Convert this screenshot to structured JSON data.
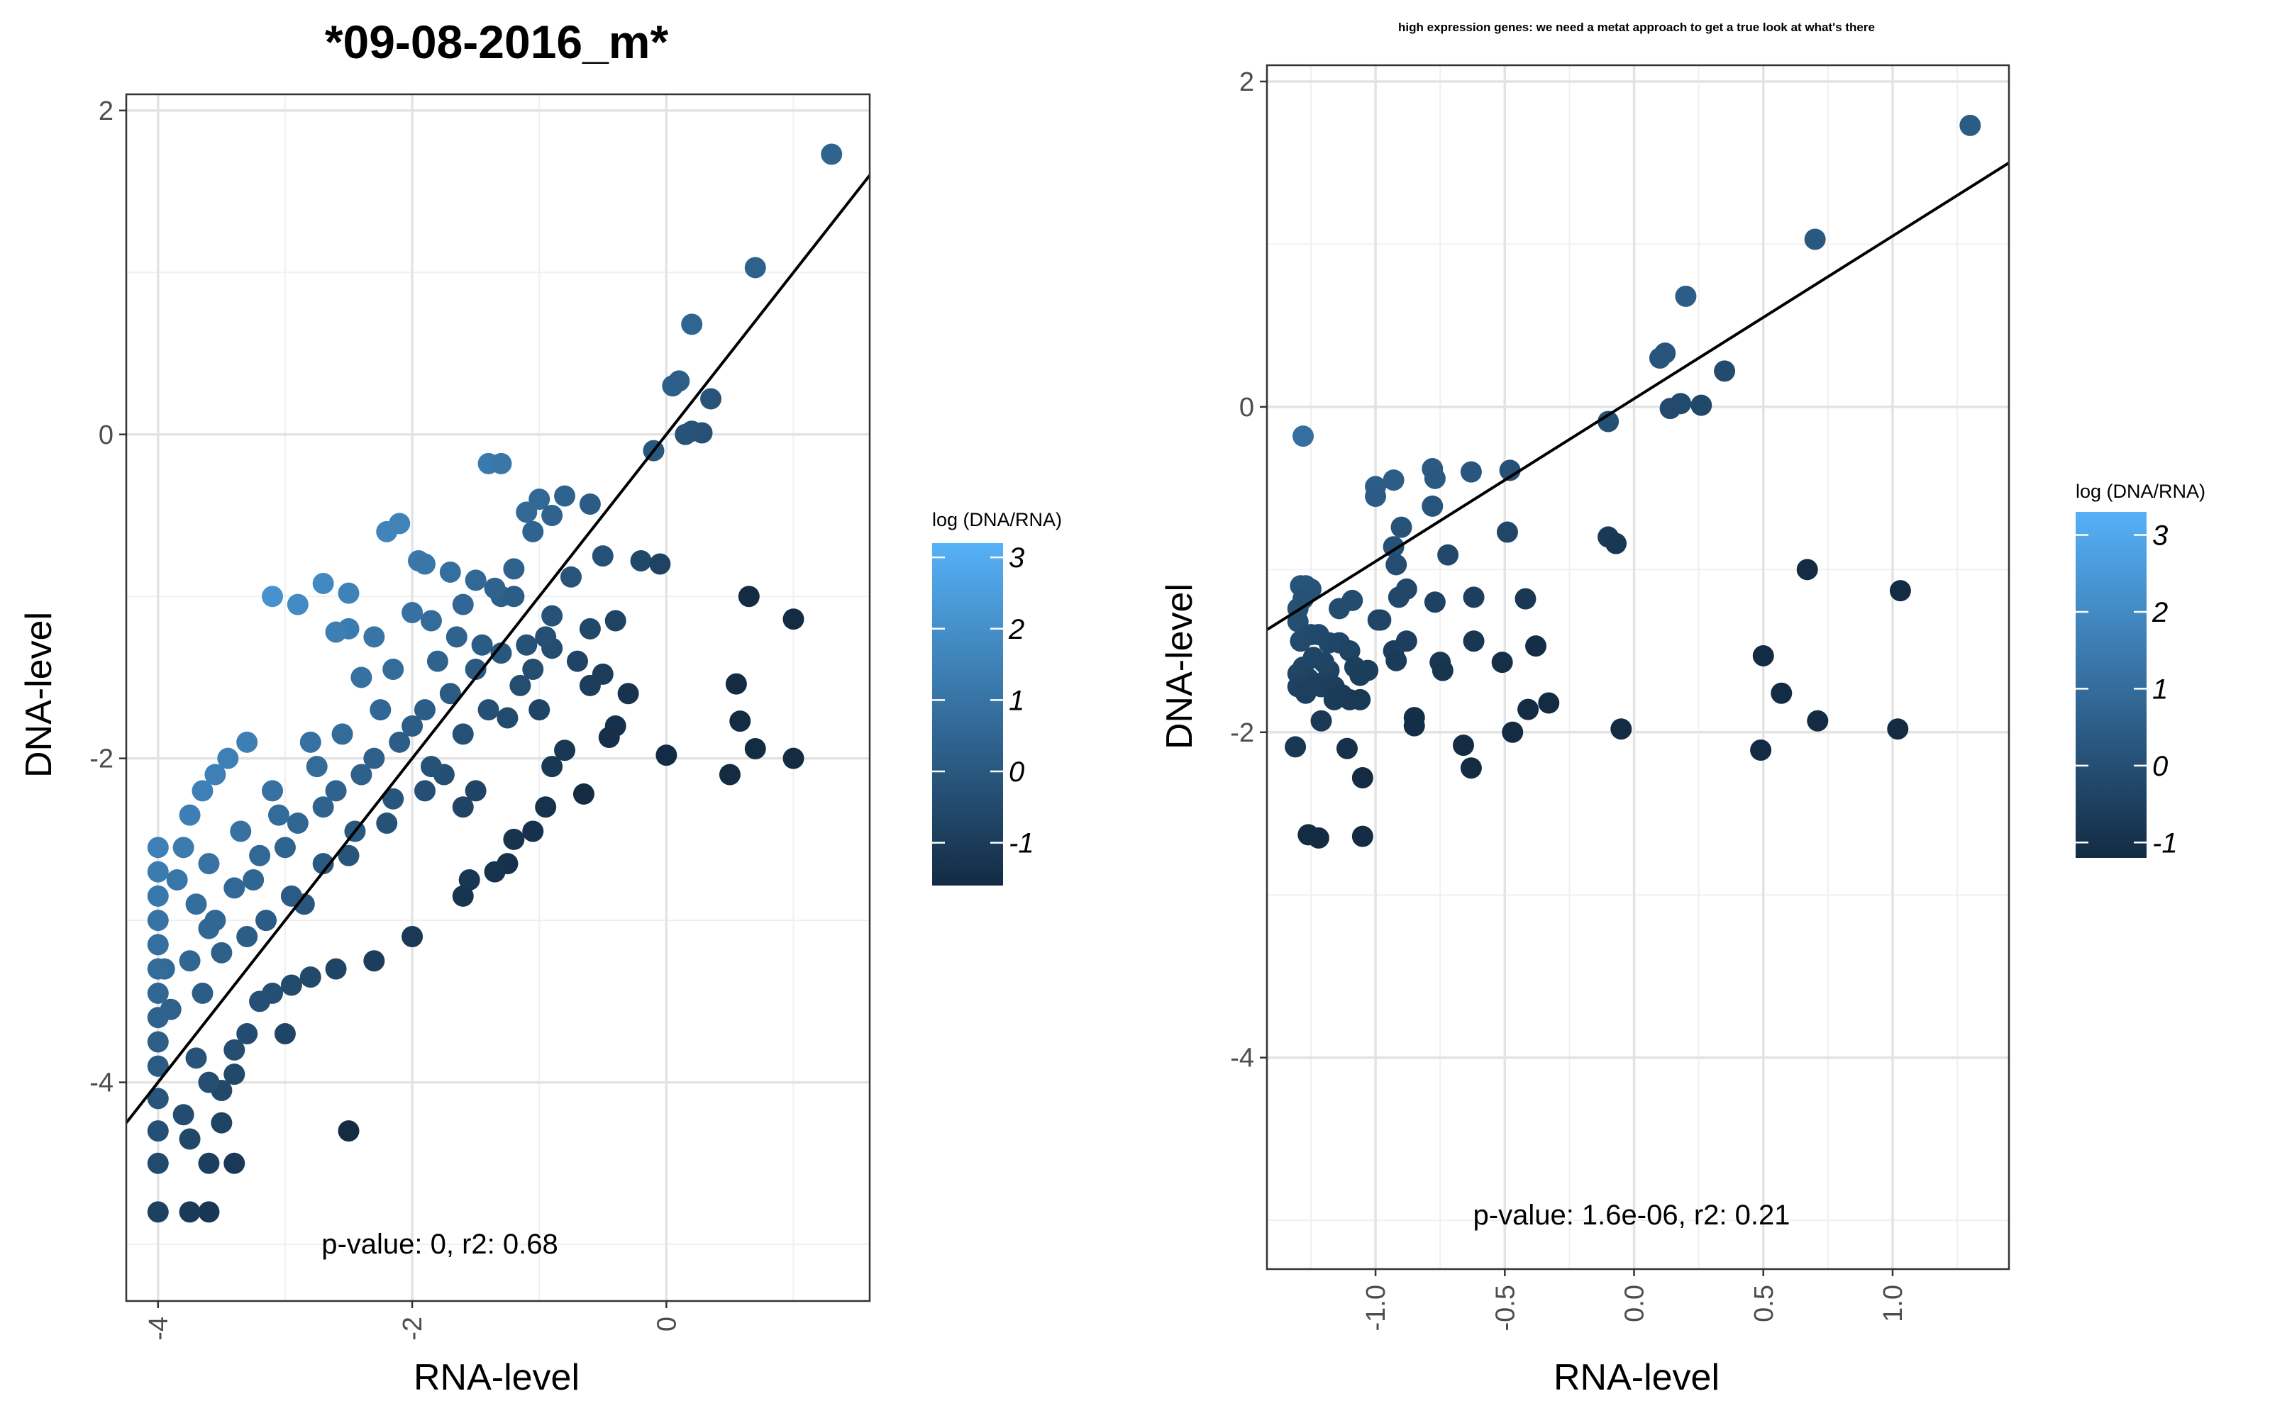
{
  "chart_data": [
    {
      "type": "scatter",
      "title": "*09-08-2016_m*",
      "xlabel": "RNA-level",
      "ylabel": "DNA-level",
      "xlim": [
        -4.25,
        1.6
      ],
      "ylim": [
        -5.35,
        2.1
      ],
      "x_ticks": [
        -4,
        -2,
        0
      ],
      "x_tick_labels": [
        "-4",
        "-2",
        "0"
      ],
      "y_ticks": [
        -4,
        -2,
        0,
        2
      ],
      "y_tick_labels": [
        "-4",
        "-2",
        "0",
        "2"
      ],
      "grid": true,
      "annotation": "p-value: 0, r2: 0.68",
      "legend": {
        "title": "log (DNA/RNA)",
        "type": "colorbar",
        "range": [
          -1.6,
          3.2
        ],
        "ticks": [
          3,
          2,
          1,
          0,
          -1
        ],
        "tick_labels": [
          "3",
          "2",
          "1",
          "0",
          "-1"
        ],
        "colors": [
          "#132B43",
          "#56B1F7"
        ],
        "placement": "right"
      },
      "regression_line": {
        "slope": 1.0,
        "intercept": 0.0
      },
      "points": [
        [
          1.3,
          1.73
        ],
        [
          0.7,
          1.03
        ],
        [
          0.2,
          0.68
        ],
        [
          0.05,
          0.3
        ],
        [
          0.1,
          0.33
        ],
        [
          0.35,
          0.22
        ],
        [
          0.2,
          0.02
        ],
        [
          0.28,
          0.01
        ],
        [
          0.15,
          0.0
        ],
        [
          -0.1,
          -0.1
        ],
        [
          -1.4,
          -0.18
        ],
        [
          -1.3,
          -0.18
        ],
        [
          -2.1,
          -0.55
        ],
        [
          -1.0,
          -0.4
        ],
        [
          -0.8,
          -0.38
        ],
        [
          -0.6,
          -0.43
        ],
        [
          -1.1,
          -0.48
        ],
        [
          -0.9,
          -0.5
        ],
        [
          -1.05,
          -0.6
        ],
        [
          -0.2,
          -0.78
        ],
        [
          -0.05,
          -0.8
        ],
        [
          -0.5,
          -0.75
        ],
        [
          -1.95,
          -0.78
        ],
        [
          -1.9,
          -0.8
        ],
        [
          -1.2,
          -0.83
        ],
        [
          -0.75,
          -0.88
        ],
        [
          -1.3,
          -1.0
        ],
        [
          -0.9,
          -1.12
        ],
        [
          -0.6,
          -1.2
        ],
        [
          -0.4,
          -1.15
        ],
        [
          -0.7,
          -1.4
        ],
        [
          -0.5,
          -1.48
        ],
        [
          -0.6,
          -1.55
        ],
        [
          -0.3,
          -1.6
        ],
        [
          -0.9,
          -1.32
        ],
        [
          -1.1,
          -1.3
        ],
        [
          -2.5,
          -1.2
        ],
        [
          -2.6,
          -1.22
        ],
        [
          -2.3,
          -1.25
        ],
        [
          -2.0,
          -1.1
        ],
        [
          -1.6,
          -1.05
        ],
        [
          -1.35,
          -0.95
        ],
        [
          -1.5,
          -0.9
        ],
        [
          -1.7,
          -0.85
        ],
        [
          0.65,
          -1.0
        ],
        [
          1.0,
          -1.14
        ],
        [
          0.55,
          -1.54
        ],
        [
          0.58,
          -1.77
        ],
        [
          0.7,
          -1.94
        ],
        [
          1.0,
          -2.0
        ],
        [
          0.5,
          -2.1
        ],
        [
          0.0,
          -1.98
        ],
        [
          -0.4,
          -1.8
        ],
        [
          -0.45,
          -1.87
        ],
        [
          -0.8,
          -1.95
        ],
        [
          -0.9,
          -2.05
        ],
        [
          -0.65,
          -2.22
        ],
        [
          -0.95,
          -2.3
        ],
        [
          -1.05,
          -2.45
        ],
        [
          -1.2,
          -2.5
        ],
        [
          -1.6,
          -2.3
        ],
        [
          -1.5,
          -2.2
        ],
        [
          -1.75,
          -2.1
        ],
        [
          -1.25,
          -2.65
        ],
        [
          -1.35,
          -2.7
        ],
        [
          -1.55,
          -2.75
        ],
        [
          -1.6,
          -2.85
        ],
        [
          -2.0,
          -3.1
        ],
        [
          -2.6,
          -3.3
        ],
        [
          -2.3,
          -3.25
        ],
        [
          -2.8,
          -3.35
        ],
        [
          -2.95,
          -3.4
        ],
        [
          -3.1,
          -3.45
        ],
        [
          -3.0,
          -3.7
        ],
        [
          -3.2,
          -3.5
        ],
        [
          -3.3,
          -3.7
        ],
        [
          -3.4,
          -3.8
        ],
        [
          -3.4,
          -3.95
        ],
        [
          -3.5,
          -4.05
        ],
        [
          -3.7,
          -3.85
        ],
        [
          -3.6,
          -4.0
        ],
        [
          -3.5,
          -4.25
        ],
        [
          -3.6,
          -4.5
        ],
        [
          -3.4,
          -4.5
        ],
        [
          -3.6,
          -4.8
        ],
        [
          -3.75,
          -4.8
        ],
        [
          -2.5,
          -4.3
        ],
        [
          -4.0,
          -4.1
        ],
        [
          -4.0,
          -4.3
        ],
        [
          -4.0,
          -4.8
        ],
        [
          -3.8,
          -4.2
        ],
        [
          -3.75,
          -4.35
        ],
        [
          -3.9,
          -3.55
        ],
        [
          -3.95,
          -3.3
        ],
        [
          -2.2,
          -0.6
        ],
        [
          -2.7,
          -0.92
        ],
        [
          -2.5,
          -0.98
        ],
        [
          -3.1,
          -1.0
        ],
        [
          -2.9,
          -1.05
        ],
        [
          -1.85,
          -1.15
        ],
        [
          -1.45,
          -1.3
        ],
        [
          -2.15,
          -1.45
        ],
        [
          -2.4,
          -1.5
        ],
        [
          -3.3,
          -1.9
        ],
        [
          -3.45,
          -2.0
        ],
        [
          -3.55,
          -2.1
        ],
        [
          -3.65,
          -2.2
        ],
        [
          -3.75,
          -2.35
        ],
        [
          -3.8,
          -2.55
        ],
        [
          -3.85,
          -2.75
        ],
        [
          -3.7,
          -2.9
        ],
        [
          -3.6,
          -3.05
        ],
        [
          -3.5,
          -3.2
        ],
        [
          -3.3,
          -3.1
        ],
        [
          -2.85,
          -2.9
        ],
        [
          -2.5,
          -2.6
        ],
        [
          -2.2,
          -2.4
        ],
        [
          -1.9,
          -2.2
        ],
        [
          -2.0,
          -1.8
        ],
        [
          -2.3,
          -2.0
        ],
        [
          -2.6,
          -2.2
        ],
        [
          -2.9,
          -2.4
        ],
        [
          -3.2,
          -2.6
        ],
        [
          -3.4,
          -2.8
        ],
        [
          -3.55,
          -3.0
        ],
        [
          -1.7,
          -1.6
        ],
        [
          -1.9,
          -1.7
        ],
        [
          -2.1,
          -1.9
        ],
        [
          -2.4,
          -2.1
        ],
        [
          -2.7,
          -2.3
        ],
        [
          -3.0,
          -2.55
        ],
        [
          -3.25,
          -2.75
        ],
        [
          -1.5,
          -1.45
        ],
        [
          -1.3,
          -1.35
        ],
        [
          -1.15,
          -1.55
        ],
        [
          -1.0,
          -1.7
        ],
        [
          -2.8,
          -1.9
        ],
        [
          -3.1,
          -2.2
        ],
        [
          -3.35,
          -2.45
        ],
        [
          -3.6,
          -2.65
        ],
        [
          -3.75,
          -3.25
        ],
        [
          -3.65,
          -3.45
        ],
        [
          -1.65,
          -1.25
        ],
        [
          -1.8,
          -1.4
        ],
        [
          -2.25,
          -1.7
        ],
        [
          -2.55,
          -1.85
        ],
        [
          -2.75,
          -2.05
        ],
        [
          -3.05,
          -2.35
        ],
        [
          -1.4,
          -1.7
        ],
        [
          -1.6,
          -1.85
        ],
        [
          -1.85,
          -2.05
        ],
        [
          -2.15,
          -2.25
        ],
        [
          -2.45,
          -2.45
        ],
        [
          -2.7,
          -2.65
        ],
        [
          -2.95,
          -2.85
        ],
        [
          -3.15,
          -3.0
        ],
        [
          -4.0,
          -2.55
        ],
        [
          -4.0,
          -2.7
        ],
        [
          -4.0,
          -2.85
        ],
        [
          -4.0,
          -3.0
        ],
        [
          -4.0,
          -3.15
        ],
        [
          -4.0,
          -3.3
        ],
        [
          -4.0,
          -3.45
        ],
        [
          -4.0,
          -3.6
        ],
        [
          -4.0,
          -3.75
        ],
        [
          -4.0,
          -3.9
        ],
        [
          -4.0,
          -4.5
        ],
        [
          -1.2,
          -1.0
        ],
        [
          -0.95,
          -1.25
        ],
        [
          -1.05,
          -1.45
        ],
        [
          -1.25,
          -1.75
        ]
      ]
    },
    {
      "type": "scatter",
      "title": "high expression genes: we need a metat approach to get a true look at what's there",
      "xlabel": "RNA-level",
      "ylabel": "DNA-level",
      "xlim": [
        -1.42,
        1.45
      ],
      "ylim": [
        -5.3,
        2.1
      ],
      "x_ticks": [
        -1.0,
        -0.5,
        0.0,
        0.5,
        1.0
      ],
      "x_tick_labels": [
        "-1.0",
        "-0.5",
        "0.0",
        "0.5",
        "1.0"
      ],
      "y_ticks": [
        -4,
        -2,
        0,
        2
      ],
      "y_tick_labels": [
        "-4",
        "-2",
        "0",
        "2"
      ],
      "grid": true,
      "annotation": "p-value: 1.6e-06, r2: 0.21",
      "legend": {
        "title": "log (DNA/RNA)",
        "type": "colorbar",
        "range": [
          -1.2,
          3.3
        ],
        "ticks": [
          3,
          2,
          1,
          0,
          -1
        ],
        "tick_labels": [
          "3",
          "2",
          "1",
          "0",
          "-1"
        ],
        "colors": [
          "#132B43",
          "#56B1F7"
        ],
        "placement": "right"
      },
      "regression_line": {
        "slope": 1.0,
        "intercept": 0.05
      },
      "points": [
        [
          1.3,
          1.73
        ],
        [
          0.7,
          1.03
        ],
        [
          0.2,
          0.68
        ],
        [
          0.1,
          0.3
        ],
        [
          0.12,
          0.33
        ],
        [
          0.35,
          0.22
        ],
        [
          0.18,
          0.02
        ],
        [
          0.26,
          0.01
        ],
        [
          0.14,
          -0.01
        ],
        [
          -0.1,
          -0.09
        ],
        [
          -1.28,
          -0.18
        ],
        [
          -1.0,
          -0.49
        ],
        [
          -1.0,
          -0.55
        ],
        [
          -0.93,
          -0.45
        ],
        [
          -0.78,
          -0.38
        ],
        [
          -0.77,
          -0.44
        ],
        [
          -0.63,
          -0.4
        ],
        [
          -0.48,
          -0.39
        ],
        [
          -0.78,
          -0.61
        ],
        [
          -0.9,
          -0.74
        ],
        [
          -0.93,
          -0.86
        ],
        [
          -0.92,
          -0.97
        ],
        [
          -0.72,
          -0.91
        ],
        [
          -0.49,
          -0.77
        ],
        [
          -0.1,
          -0.8
        ],
        [
          -0.07,
          -0.84
        ],
        [
          -0.98,
          -1.31
        ],
        [
          -0.99,
          -1.31
        ],
        [
          -1.09,
          -1.19
        ],
        [
          -1.14,
          -1.24
        ],
        [
          -0.91,
          -1.17
        ],
        [
          -0.88,
          -1.12
        ],
        [
          -0.77,
          -1.2
        ],
        [
          -0.62,
          -1.17
        ],
        [
          -0.42,
          -1.18
        ],
        [
          -1.29,
          -1.1
        ],
        [
          -1.27,
          -1.1
        ],
        [
          -1.25,
          -1.12
        ],
        [
          -1.28,
          -1.18
        ],
        [
          -1.3,
          -1.24
        ],
        [
          -1.3,
          -1.32
        ],
        [
          -1.29,
          -1.44
        ],
        [
          -1.25,
          -1.4
        ],
        [
          -1.22,
          -1.4
        ],
        [
          -1.18,
          -1.45
        ],
        [
          -1.14,
          -1.45
        ],
        [
          -1.1,
          -1.5
        ],
        [
          -1.08,
          -1.6
        ],
        [
          -1.06,
          -1.65
        ],
        [
          -1.03,
          -1.62
        ],
        [
          -1.28,
          -1.6
        ],
        [
          -1.3,
          -1.64
        ],
        [
          -1.26,
          -1.67
        ],
        [
          -1.23,
          -1.7
        ],
        [
          -1.21,
          -1.72
        ],
        [
          -1.18,
          -1.62
        ],
        [
          -1.16,
          -1.72
        ],
        [
          -1.13,
          -1.77
        ],
        [
          -1.1,
          -1.8
        ],
        [
          -1.06,
          -1.8
        ],
        [
          -1.24,
          -1.54
        ],
        [
          -1.2,
          -1.57
        ],
        [
          -1.3,
          -1.72
        ],
        [
          -1.27,
          -1.76
        ],
        [
          -0.93,
          -1.5
        ],
        [
          -0.88,
          -1.44
        ],
        [
          -0.92,
          -1.56
        ],
        [
          -0.75,
          -1.57
        ],
        [
          -0.74,
          -1.62
        ],
        [
          -0.62,
          -1.44
        ],
        [
          -0.51,
          -1.57
        ],
        [
          -0.38,
          -1.47
        ],
        [
          -0.33,
          -1.82
        ],
        [
          -0.41,
          -1.86
        ],
        [
          -0.47,
          -2.0
        ],
        [
          -0.85,
          -1.91
        ],
        [
          -0.85,
          -1.96
        ],
        [
          -0.66,
          -2.08
        ],
        [
          -0.63,
          -2.22
        ],
        [
          -1.11,
          -2.1
        ],
        [
          -1.05,
          -2.28
        ],
        [
          -1.21,
          -1.93
        ],
        [
          -1.16,
          -1.8
        ],
        [
          -1.31,
          -2.09
        ],
        [
          -1.26,
          -2.63
        ],
        [
          -1.22,
          -2.65
        ],
        [
          -1.05,
          -2.64
        ],
        [
          0.67,
          -1.0
        ],
        [
          1.03,
          -1.13
        ],
        [
          0.5,
          -1.53
        ],
        [
          0.57,
          -1.76
        ],
        [
          0.71,
          -1.93
        ],
        [
          1.02,
          -1.98
        ],
        [
          -0.05,
          -1.98
        ],
        [
          0.49,
          -2.11
        ]
      ]
    }
  ]
}
